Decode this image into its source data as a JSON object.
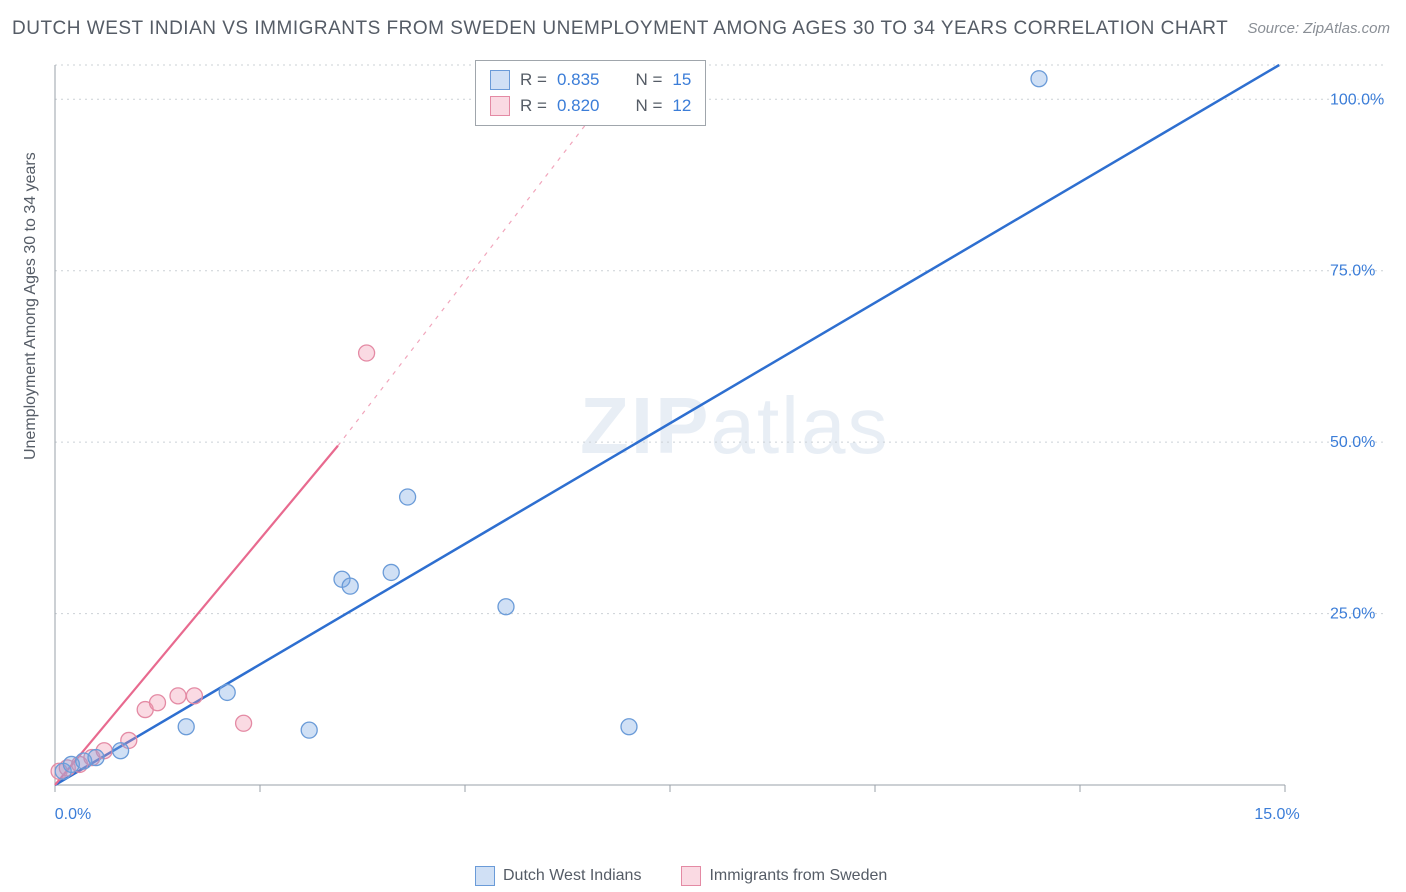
{
  "title": "DUTCH WEST INDIAN VS IMMIGRANTS FROM SWEDEN UNEMPLOYMENT AMONG AGES 30 TO 34 YEARS CORRELATION CHART",
  "source": "Source: ZipAtlas.com",
  "yaxis_label": "Unemployment Among Ages 30 to 34 years",
  "watermark_a": "ZIP",
  "watermark_b": "atlas",
  "chart": {
    "type": "scatter",
    "xlim": [
      0,
      15
    ],
    "ylim": [
      0,
      105
    ],
    "x_ticks": [
      0,
      2.5,
      5,
      7.5,
      10,
      12.5,
      15
    ],
    "x_tick_labels": {
      "0": "0.0%",
      "15": "15.0%"
    },
    "y_ticks": [
      25,
      50,
      75,
      100
    ],
    "y_tick_labels": {
      "25": "25.0%",
      "50": "50.0%",
      "75": "75.0%",
      "100": "100.0%"
    },
    "background_color": "#ffffff",
    "grid_color": "#cbd1d6",
    "axis_color": "#9aa1a8",
    "tick_label_color": "#3b7dd8",
    "series": [
      {
        "name": "Dutch West Indians",
        "color_fill": "rgba(120,165,225,0.35)",
        "color_stroke": "#6a9bd8",
        "marker_r": 8,
        "trend": {
          "slope": 7.1,
          "intercept": -1.0,
          "stroke": "#2e6fd0",
          "width": 2.5,
          "dash": "none"
        },
        "R": "0.835",
        "N": "15",
        "points": [
          [
            0.1,
            2.0
          ],
          [
            0.2,
            3.0
          ],
          [
            0.35,
            3.5
          ],
          [
            0.5,
            4.0
          ],
          [
            0.8,
            5.0
          ],
          [
            1.6,
            8.5
          ],
          [
            2.1,
            13.5
          ],
          [
            3.1,
            8.0
          ],
          [
            3.5,
            30.0
          ],
          [
            3.6,
            29.0
          ],
          [
            4.1,
            31.0
          ],
          [
            4.3,
            42.0
          ],
          [
            5.5,
            26.0
          ],
          [
            7.0,
            8.5
          ],
          [
            12.0,
            103.0
          ]
        ]
      },
      {
        "name": "Immigrants from Sweden",
        "color_fill": "rgba(240,150,175,0.35)",
        "color_stroke": "#e48aa4",
        "marker_r": 8,
        "trend": {
          "slope": 15.5,
          "intercept": -4.0,
          "stroke": "#e86a8f",
          "width": 2.2,
          "dash": "none",
          "extend_dash_after": 3.45,
          "dash_pattern": "4,6"
        },
        "R": "0.820",
        "N": "12",
        "points": [
          [
            0.05,
            2.0
          ],
          [
            0.15,
            2.5
          ],
          [
            0.3,
            3.0
          ],
          [
            0.45,
            4.0
          ],
          [
            0.6,
            5.0
          ],
          [
            0.9,
            6.5
          ],
          [
            1.1,
            11.0
          ],
          [
            1.25,
            12.0
          ],
          [
            1.5,
            13.0
          ],
          [
            1.7,
            13.0
          ],
          [
            2.3,
            9.0
          ],
          [
            3.8,
            63.0
          ]
        ]
      }
    ],
    "legend_top": {
      "rows": [
        {
          "swatch_fill": "rgba(120,165,225,0.35)",
          "swatch_stroke": "#6a9bd8",
          "r_label": "R =",
          "r_val": "0.835",
          "n_label": "N =",
          "n_val": "15"
        },
        {
          "swatch_fill": "rgba(240,150,175,0.35)",
          "swatch_stroke": "#e48aa4",
          "r_label": "R =",
          "r_val": "0.820",
          "n_label": "N =",
          "n_val": "12"
        }
      ]
    },
    "legend_bottom": [
      {
        "swatch_fill": "rgba(120,165,225,0.35)",
        "swatch_stroke": "#6a9bd8",
        "label": "Dutch West Indians"
      },
      {
        "swatch_fill": "rgba(240,150,175,0.35)",
        "swatch_stroke": "#e48aa4",
        "label": "Immigrants from Sweden"
      }
    ]
  }
}
